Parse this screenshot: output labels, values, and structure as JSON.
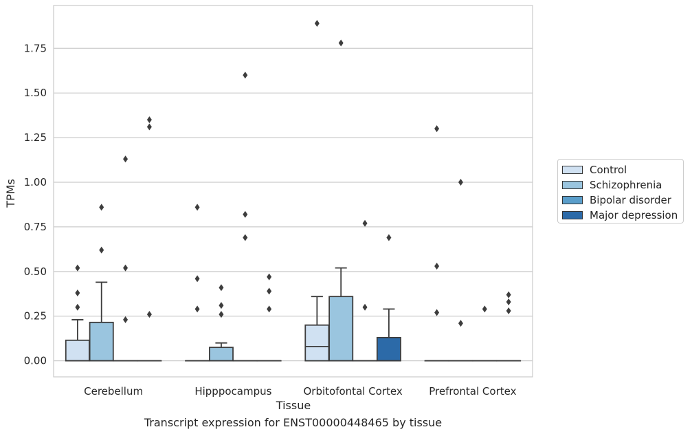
{
  "caption": "Transcript expression for ENST00000448465 by tissue",
  "chart_data": {
    "type": "boxplot",
    "xlabel": "Tissue",
    "ylabel": "TPMs",
    "ylim": [
      -0.09,
      1.99
    ],
    "yticks": [
      0.0,
      0.25,
      0.5,
      0.75,
      1.0,
      1.25,
      1.5,
      1.75
    ],
    "ytick_labels": [
      "0.00",
      "0.25",
      "0.50",
      "0.75",
      "1.00",
      "1.25",
      "1.50",
      "1.75"
    ],
    "grid": true,
    "legend_position": "right",
    "categories": [
      "Cerebellum",
      "Hipppocampus",
      "Orbitofontal Cortex",
      "Prefrontal Cortex"
    ],
    "series": [
      {
        "name": "Control",
        "color": "#d0e1f2",
        "boxes": [
          {
            "q1": 0.0,
            "median": 0.0,
            "q3": 0.115,
            "whisker_low": 0.0,
            "whisker_high": 0.23,
            "outliers": [
              0.3,
              0.38,
              0.52
            ]
          },
          {
            "q1": 0.0,
            "median": 0.0,
            "q3": 0.0,
            "whisker_low": 0.0,
            "whisker_high": 0.0,
            "outliers": [
              0.29,
              0.46,
              0.86
            ]
          },
          {
            "q1": 0.0,
            "median": 0.08,
            "q3": 0.2,
            "whisker_low": 0.0,
            "whisker_high": 0.36,
            "outliers": [
              1.89
            ]
          },
          {
            "q1": 0.0,
            "median": 0.0,
            "q3": 0.0,
            "whisker_low": 0.0,
            "whisker_high": 0.0,
            "outliers": [
              0.27,
              0.53,
              1.3
            ]
          }
        ]
      },
      {
        "name": "Schizophrenia",
        "color": "#9ac5df",
        "boxes": [
          {
            "q1": 0.0,
            "median": 0.0,
            "q3": 0.215,
            "whisker_low": 0.0,
            "whisker_high": 0.44,
            "outliers": [
              0.62,
              0.86
            ]
          },
          {
            "q1": 0.0,
            "median": 0.0,
            "q3": 0.075,
            "whisker_low": 0.0,
            "whisker_high": 0.1,
            "outliers": [
              0.26,
              0.31,
              0.41
            ]
          },
          {
            "q1": 0.0,
            "median": 0.0,
            "q3": 0.36,
            "whisker_low": 0.0,
            "whisker_high": 0.52,
            "outliers": [
              1.78
            ]
          },
          {
            "q1": 0.0,
            "median": 0.0,
            "q3": 0.0,
            "whisker_low": 0.0,
            "whisker_high": 0.0,
            "outliers": [
              0.21,
              1.0
            ]
          }
        ]
      },
      {
        "name": "Bipolar disorder",
        "color": "#5a9ecb",
        "boxes": [
          {
            "q1": 0.0,
            "median": 0.0,
            "q3": 0.0,
            "whisker_low": 0.0,
            "whisker_high": 0.0,
            "outliers": [
              0.23,
              0.52,
              1.13
            ]
          },
          {
            "q1": 0.0,
            "median": 0.0,
            "q3": 0.0,
            "whisker_low": 0.0,
            "whisker_high": 0.0,
            "outliers": [
              0.69,
              0.82,
              1.6
            ]
          },
          {
            "q1": 0.0,
            "median": 0.0,
            "q3": 0.0,
            "whisker_low": 0.0,
            "whisker_high": 0.0,
            "outliers": [
              0.3,
              0.77
            ]
          },
          {
            "q1": 0.0,
            "median": 0.0,
            "q3": 0.0,
            "whisker_low": 0.0,
            "whisker_high": 0.0,
            "outliers": [
              0.29
            ]
          }
        ]
      },
      {
        "name": "Major depression",
        "color": "#2c6aa8",
        "boxes": [
          {
            "q1": 0.0,
            "median": 0.0,
            "q3": 0.0,
            "whisker_low": 0.0,
            "whisker_high": 0.0,
            "outliers": [
              0.26,
              1.31,
              1.35
            ]
          },
          {
            "q1": 0.0,
            "median": 0.0,
            "q3": 0.0,
            "whisker_low": 0.0,
            "whisker_high": 0.0,
            "outliers": [
              0.29,
              0.39,
              0.47
            ]
          },
          {
            "q1": 0.0,
            "median": 0.0,
            "q3": 0.13,
            "whisker_low": 0.0,
            "whisker_high": 0.29,
            "outliers": [
              0.69
            ]
          },
          {
            "q1": 0.0,
            "median": 0.0,
            "q3": 0.0,
            "whisker_low": 0.0,
            "whisker_high": 0.0,
            "outliers": [
              0.28,
              0.33,
              0.37
            ]
          }
        ]
      }
    ]
  }
}
